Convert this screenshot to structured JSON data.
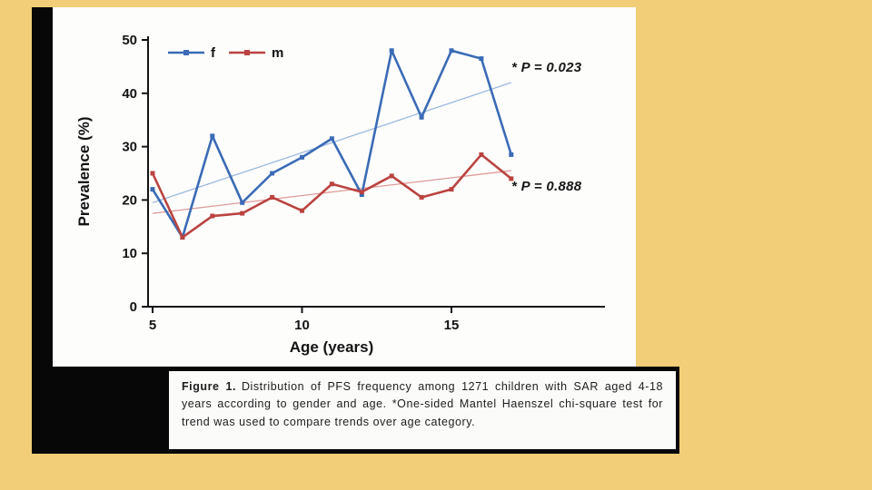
{
  "slide": {
    "background_color": "#f1ce77"
  },
  "chart_data": {
    "type": "line",
    "title": "",
    "xlabel": "Age (years)",
    "ylabel": "Prevalence (%)",
    "x": [
      5,
      6,
      7,
      8,
      9,
      10,
      11,
      12,
      13,
      14,
      15,
      16,
      17
    ],
    "series": [
      {
        "name": "f",
        "color": "#3a6bb5",
        "values": [
          22,
          13,
          32,
          19.5,
          25,
          28,
          31.5,
          21,
          48,
          35.5,
          48,
          46.5,
          28.5
        ],
        "trend": {
          "from": [
            5,
            19.5
          ],
          "to": [
            17,
            42
          ],
          "color": "#9db9de"
        },
        "p_label": "* P = 0.023"
      },
      {
        "name": "m",
        "color": "#ba4340",
        "values": [
          25,
          13,
          17,
          17.5,
          20.5,
          18,
          23,
          21.5,
          24.5,
          20.5,
          22,
          28.5,
          24
        ],
        "trend": {
          "from": [
            5,
            17.5
          ],
          "to": [
            17,
            25.5
          ],
          "color": "#dd9b98"
        },
        "p_label": "* P = 0.888"
      }
    ],
    "xticks": [
      5,
      10,
      15
    ],
    "yticks": [
      0,
      10,
      20,
      30,
      40,
      50
    ],
    "xlim": [
      4.8,
      18.2
    ],
    "ylim": [
      0,
      50
    ],
    "grid": false,
    "legend_position": "top-left",
    "legend_entries": [
      "f",
      "m"
    ]
  },
  "caption": {
    "label": "Figure 1.",
    "text": "Distribution of PFS frequency among 1271 children with SAR aged 4-18 years according to gender and age. *One-sided Mantel Haenszel chi-square test for trend was used to compare trends over age category."
  }
}
